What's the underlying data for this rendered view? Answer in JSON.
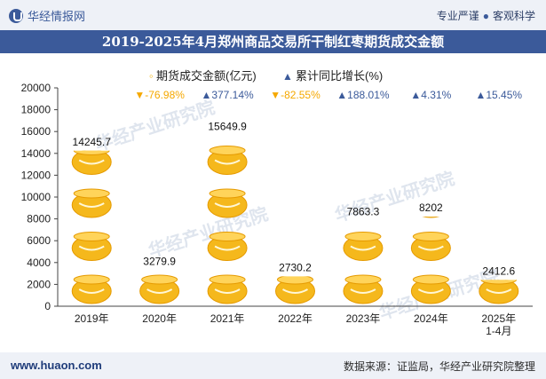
{
  "header": {
    "brand": "华经情报网",
    "tagline_left": "专业严谨",
    "tagline_right": "客观科学"
  },
  "title": "2019-2025年4月郑州商品交易所干制红枣期货成交金额",
  "footer": {
    "site": "www.huaon.com",
    "source": "数据来源：证监局，华经产业研究院整理"
  },
  "watermark": "华经产业研究院",
  "colors": {
    "bar": "#f5b81c",
    "up": "#3b5a9a",
    "down": "#f5a800",
    "header_bg": "#3b5a9a"
  },
  "chart_data": {
    "type": "bar",
    "categories": [
      "2019年",
      "2020年",
      "2021年",
      "2022年",
      "2023年",
      "2024年",
      "2025年\n1-4月"
    ],
    "series": [
      {
        "name": "期货成交金额(亿元)",
        "values": [
          14245.7,
          3279.9,
          15649.9,
          2730.2,
          7863.3,
          8202,
          2412.6
        ],
        "labels": [
          "14245.7",
          "3279.9",
          "15649.9",
          "2730.2",
          "7863.3",
          "8202",
          "2412.6"
        ]
      },
      {
        "name": "累计同比增长(%)",
        "values": [
          null,
          -76.98,
          377.14,
          -82.55,
          188.01,
          4.31,
          15.45
        ],
        "labels": [
          "",
          "▼-76.98%",
          "▲377.14%",
          "▼-82.55%",
          "▲188.01%",
          "▲4.31%",
          "▲15.45%"
        ]
      }
    ],
    "yticks": [
      "0",
      "2000",
      "4000",
      "6000",
      "8000",
      "10000",
      "12000",
      "14000",
      "16000",
      "18000",
      "20000"
    ],
    "ylim": [
      0,
      20000
    ],
    "legend_position": "top"
  }
}
